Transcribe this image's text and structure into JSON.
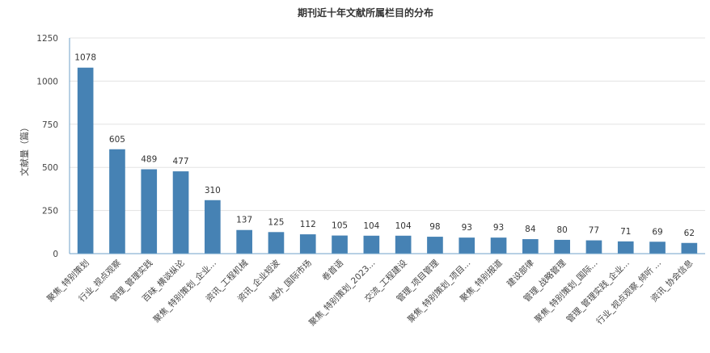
{
  "chart_data": {
    "type": "bar",
    "title": "期刊近十年文献所属栏目的分布",
    "xlabel": "",
    "ylabel": "文献量（篇）",
    "ylim": [
      0,
      1250
    ],
    "yticks": [
      0,
      250,
      500,
      750,
      1000,
      1250
    ],
    "grid": true,
    "legend": "none",
    "bar_color": "#4682b4",
    "categories": [
      "聚焦_特别策划",
      "行业_视点观察",
      "管理_管理实践",
      "百味_横谈纵论",
      "聚焦_特别策划_企业...",
      "资讯_工程机械",
      "资讯_企业短波",
      "域外_国际市场",
      "卷首语",
      "聚焦_特别策划_2023...",
      "交流_工程建设",
      "管理_项目管理",
      "聚焦_特别策划_项目...",
      "聚焦_特别报道",
      "建设部律",
      "管理_战略管理",
      "聚焦_特别策划_国际...",
      "管理_管理实践_企业...",
      "行业_视点观察_倾听 ...",
      "资讯_协会信息"
    ],
    "values": [
      1078,
      605,
      489,
      477,
      310,
      137,
      125,
      112,
      105,
      104,
      104,
      98,
      93,
      93,
      84,
      80,
      77,
      71,
      69,
      62
    ]
  }
}
